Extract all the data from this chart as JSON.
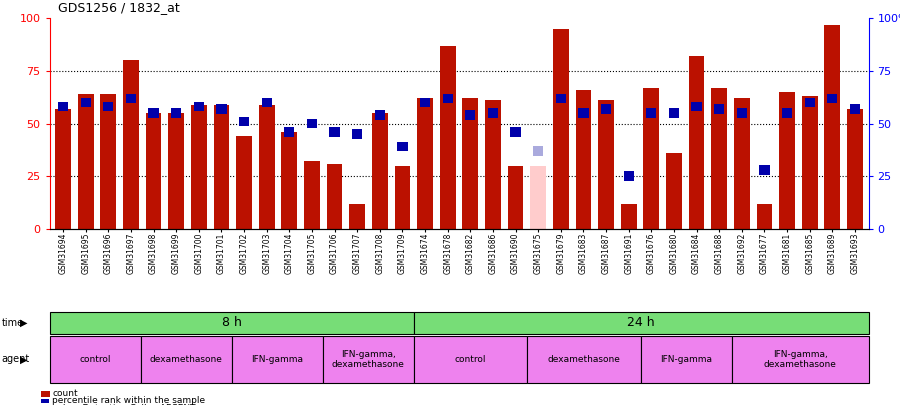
{
  "title": "GDS1256 / 1832_at",
  "samples": [
    "GSM31694",
    "GSM31695",
    "GSM31696",
    "GSM31697",
    "GSM31698",
    "GSM31699",
    "GSM31700",
    "GSM31701",
    "GSM31702",
    "GSM31703",
    "GSM31704",
    "GSM31705",
    "GSM31706",
    "GSM31707",
    "GSM31708",
    "GSM31709",
    "GSM31674",
    "GSM31678",
    "GSM31682",
    "GSM31686",
    "GSM31690",
    "GSM31675",
    "GSM31679",
    "GSM31683",
    "GSM31687",
    "GSM31691",
    "GSM31676",
    "GSM31680",
    "GSM31684",
    "GSM31688",
    "GSM31692",
    "GSM31677",
    "GSM31681",
    "GSM31685",
    "GSM31689",
    "GSM31693"
  ],
  "red_values": [
    57,
    64,
    64,
    80,
    55,
    55,
    59,
    59,
    44,
    59,
    46,
    32,
    31,
    12,
    55,
    30,
    62,
    87,
    62,
    61,
    30,
    30,
    95,
    66,
    61,
    12,
    67,
    36,
    82,
    67,
    62,
    12,
    65,
    63,
    97,
    57
  ],
  "blue_values": [
    58,
    60,
    58,
    62,
    55,
    55,
    58,
    57,
    51,
    60,
    46,
    50,
    46,
    45,
    54,
    39,
    60,
    62,
    54,
    55,
    46,
    37,
    62,
    55,
    57,
    25,
    55,
    55,
    58,
    57,
    55,
    28,
    55,
    60,
    62,
    57
  ],
  "absent_red_idx": 21,
  "absent_red_val": 30,
  "absent_blue_idx": 21,
  "absent_blue_val": 37,
  "time_groups": [
    {
      "label": "8 h",
      "start": 0,
      "end": 16,
      "color": "#77DD77"
    },
    {
      "label": "24 h",
      "start": 16,
      "end": 36,
      "color": "#77DD77"
    }
  ],
  "agent_groups": [
    {
      "label": "control",
      "start": 0,
      "end": 4
    },
    {
      "label": "dexamethasone",
      "start": 4,
      "end": 8
    },
    {
      "label": "IFN-gamma",
      "start": 8,
      "end": 12
    },
    {
      "label": "IFN-gamma,\ndexamethasone",
      "start": 12,
      "end": 16
    },
    {
      "label": "control",
      "start": 16,
      "end": 21
    },
    {
      "label": "dexamethasone",
      "start": 21,
      "end": 26
    },
    {
      "label": "IFN-gamma",
      "start": 26,
      "end": 30
    },
    {
      "label": "IFN-gamma,\ndexamethasone",
      "start": 30,
      "end": 36
    }
  ],
  "agent_color": "#EE82EE",
  "bar_color": "#BB1100",
  "absent_bar_color": "#FFCCCC",
  "blue_marker_color": "#0000AA",
  "absent_rank_color": "#AAAADD",
  "ylim": [
    0,
    100
  ],
  "yticks": [
    0,
    25,
    50,
    75,
    100
  ],
  "yticklabels_left": [
    "0",
    "25",
    "50",
    "75",
    "100"
  ],
  "yticklabels_right": [
    "0",
    "25",
    "50",
    "75",
    "100%"
  ]
}
